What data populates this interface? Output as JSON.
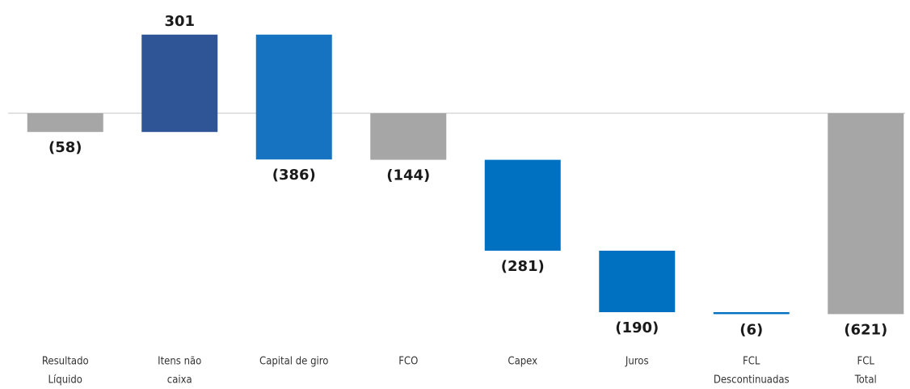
{
  "chart_data": {
    "type": "waterfall",
    "categories": [
      [
        "Resultado",
        "Líquido"
      ],
      [
        "Itens   não",
        "caixa"
      ],
      [
        "Capital de giro"
      ],
      [
        "FCO"
      ],
      [
        "Capex"
      ],
      [
        "Juros"
      ],
      [
        "FCL",
        "Descontinuadas"
      ],
      [
        "FCL",
        "Total"
      ]
    ],
    "values": [
      -58,
      301,
      -386,
      -144,
      -281,
      -190,
      -6,
      -621
    ],
    "value_labels": [
      "(58)",
      "301",
      "(386)",
      "(144)",
      "(281)",
      "(190)",
      "(6)",
      "(621)"
    ],
    "subtotals": [
      true,
      false,
      false,
      true,
      false,
      false,
      false,
      true
    ],
    "colors": [
      "#a6a6a6",
      "#2f5597",
      "#1573c2",
      "#a6a6a6",
      "#0070c0",
      "#0070c0",
      "#0070c0",
      "#a6a6a6"
    ],
    "ylim": [
      -700,
      350
    ]
  }
}
